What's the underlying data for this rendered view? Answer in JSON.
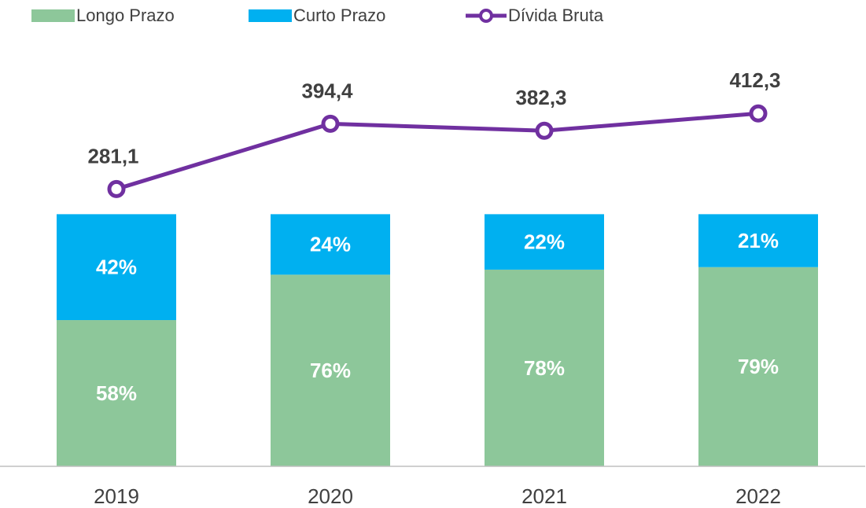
{
  "chart_data": {
    "type": "bar-line",
    "categories": [
      "2019",
      "2020",
      "2021",
      "2022"
    ],
    "series": [
      {
        "name": "Longo Prazo",
        "type": "stacked-bar",
        "color": "#8dc79a",
        "values": [
          58,
          76,
          78,
          79
        ],
        "value_labels": [
          "58%",
          "76%",
          "78%",
          "79%"
        ]
      },
      {
        "name": "Curto Prazo",
        "type": "stacked-bar",
        "color": "#00b0f0",
        "values": [
          42,
          24,
          22,
          21
        ],
        "value_labels": [
          "42%",
          "24%",
          "22%",
          "21%"
        ]
      },
      {
        "name": "Dívida Bruta",
        "type": "line",
        "axis": "y2",
        "color": "#7030a0",
        "values": [
          281.1,
          394.4,
          382.3,
          412.3
        ],
        "value_labels": [
          "281,1",
          "394,4",
          "382,3",
          "412,3"
        ]
      }
    ],
    "ylim": [
      0,
      160
    ],
    "y2lim": [
      -200,
      500
    ],
    "grid": false
  }
}
